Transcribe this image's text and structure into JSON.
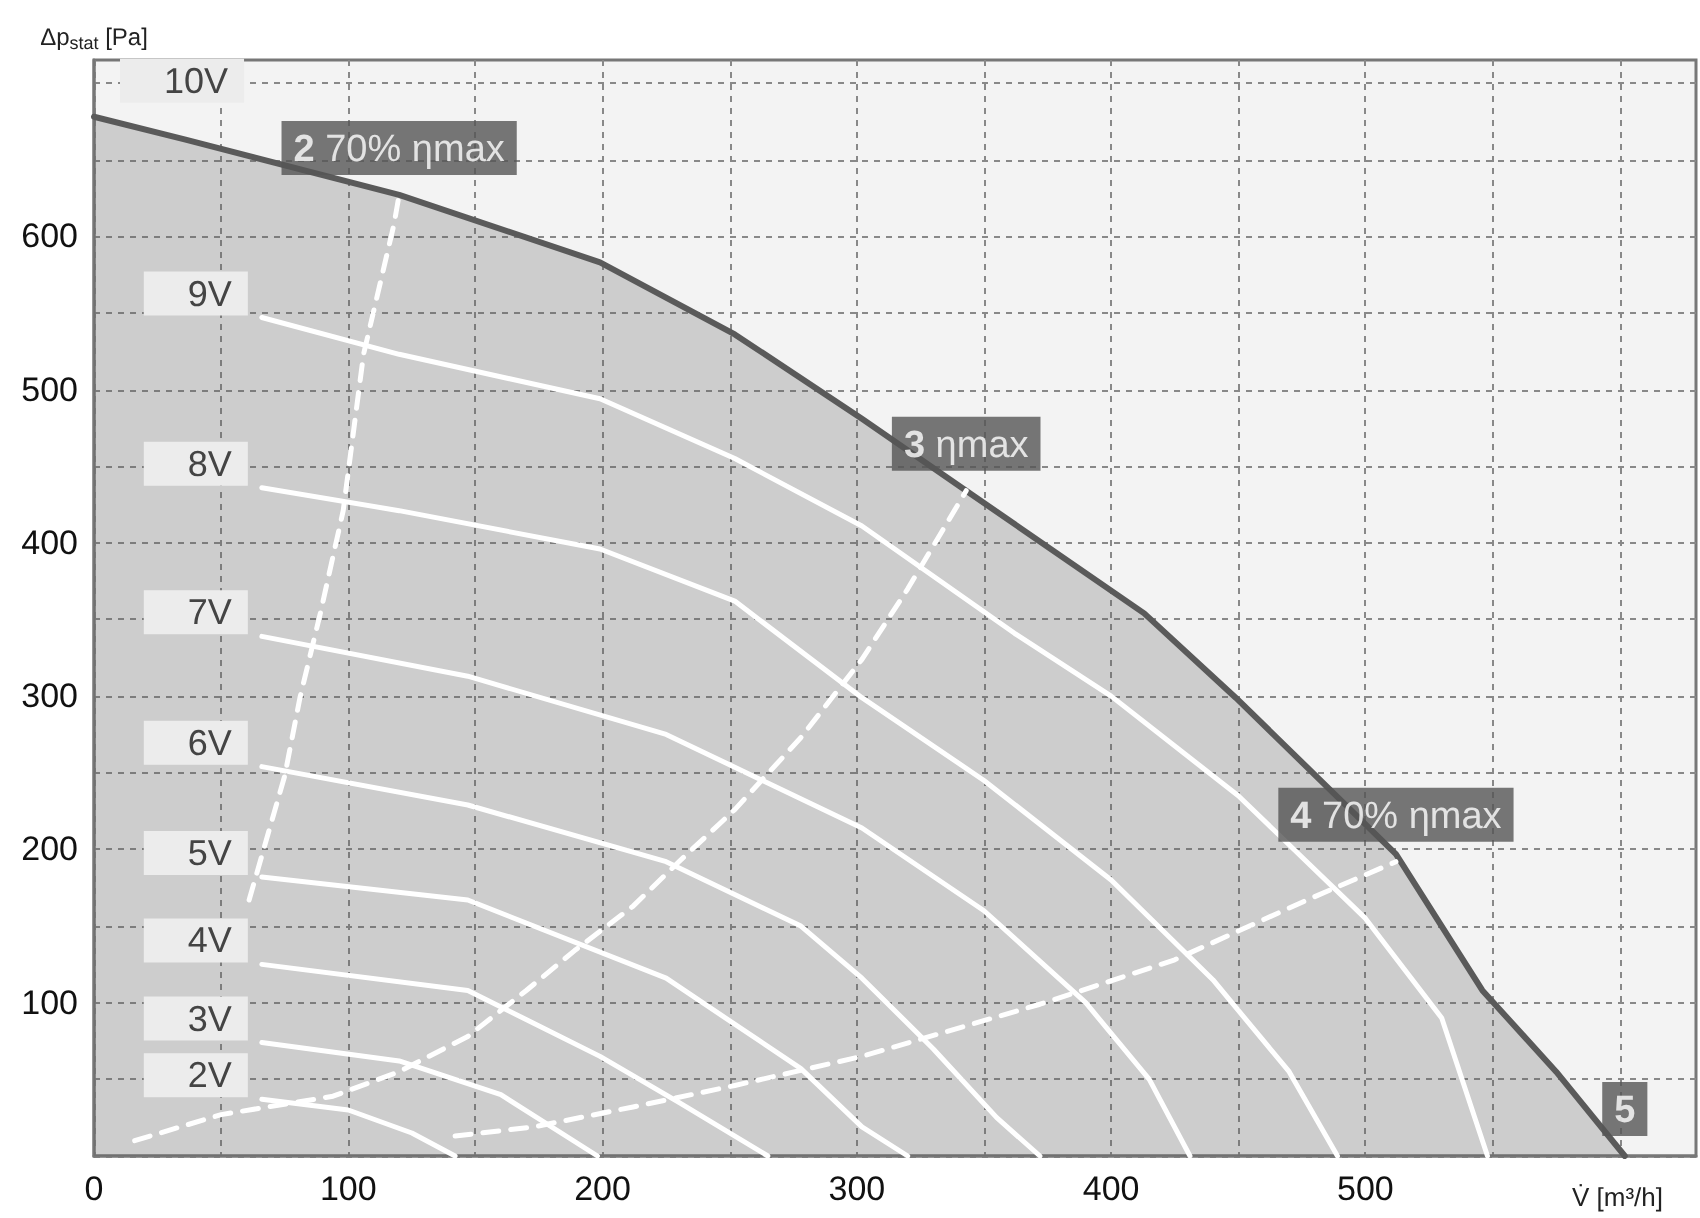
{
  "chart_data": {
    "type": "line",
    "xlabel": "V̇ [m³/h]",
    "ylabel": "Δp$_{stat}$ [Pa]",
    "xlim": [
      0,
      630
    ],
    "ylim": [
      0,
      715
    ],
    "xticks": [
      0,
      {
        "value": 50,
        "label": null
      },
      100,
      {
        "value": 150,
        "label": null
      },
      200,
      {
        "value": 250,
        "label": null
      },
      300,
      {
        "value": 350,
        "label": null
      },
      400,
      {
        "value": 450,
        "label": null
      },
      500,
      {
        "value": 550,
        "label": null
      },
      {
        "value": 600,
        "label": null
      }
    ],
    "yticks": [
      {
        "value": 0,
        "label": null
      },
      {
        "value": 50,
        "label": null
      },
      100,
      {
        "value": 150,
        "label": null
      },
      200,
      {
        "value": 250,
        "label": null
      },
      300,
      {
        "value": 350,
        "label": null
      },
      400,
      {
        "value": 450,
        "label": null
      },
      500,
      {
        "value": 550,
        "label": null
      },
      600,
      {
        "value": 650,
        "label": null
      },
      {
        "value": 700,
        "label": null
      }
    ],
    "grid": true,
    "marker": "none",
    "series": [
      {
        "name": "10V",
        "type": "area",
        "color": "#5a5a5a",
        "line_style": "solid",
        "x": [
          0,
          36,
          120,
          199,
          252,
          302,
          343,
          413,
          449,
          512,
          546,
          575,
          602
        ],
        "values": [
          678,
          663,
          627,
          583,
          536,
          481,
          434,
          354,
          299,
          197,
          108,
          55,
          0
        ]
      },
      {
        "name": "9V",
        "color": "#ffffff",
        "line_style": "solid",
        "x": [
          66,
          120,
          199,
          252,
          302,
          362,
          400,
          450,
          500,
          530,
          548
        ],
        "values": [
          547,
          523,
          494,
          455,
          411,
          341,
          300,
          235,
          155,
          90,
          0
        ]
      },
      {
        "name": "8V",
        "color": "#ffffff",
        "line_style": "solid",
        "x": [
          66,
          120,
          199,
          252,
          302,
          350,
          400,
          440,
          470,
          489
        ],
        "values": [
          436,
          421,
          396,
          362,
          299,
          245,
          180,
          115,
          55,
          0
        ]
      },
      {
        "name": "7V",
        "color": "#ffffff",
        "line_style": "solid",
        "x": [
          66,
          147,
          225,
          302,
          350,
          390,
          415,
          431
        ],
        "values": [
          339,
          313,
          275,
          214,
          160,
          100,
          50,
          0
        ]
      },
      {
        "name": "6V",
        "color": "#ffffff",
        "line_style": "solid",
        "x": [
          66,
          147,
          225,
          278,
          302,
          330,
          355,
          372
        ],
        "values": [
          254,
          229,
          192,
          150,
          116,
          70,
          25,
          0
        ]
      },
      {
        "name": "5V",
        "color": "#ffffff",
        "line_style": "solid",
        "x": [
          66,
          147,
          225,
          278,
          302,
          320
        ],
        "values": [
          182,
          167,
          116,
          57,
          19,
          0
        ]
      },
      {
        "name": "4V",
        "color": "#ffffff",
        "line_style": "solid",
        "x": [
          66,
          147,
          199,
          230,
          265
        ],
        "values": [
          125,
          108,
          65,
          35,
          0
        ]
      },
      {
        "name": "3V",
        "color": "#ffffff",
        "line_style": "solid",
        "x": [
          66,
          120,
          160,
          198
        ],
        "values": [
          74,
          62,
          40,
          0
        ]
      },
      {
        "name": "2V",
        "color": "#ffffff",
        "line_style": "solid",
        "x": [
          66,
          100,
          125,
          142
        ],
        "values": [
          37,
          30,
          15,
          0
        ]
      },
      {
        "color": "#ffffff",
        "line_style": "dashed",
        "x": [
          61,
          75,
          81,
          89,
          98,
          106,
          118,
          120
        ],
        "values": [
          167,
          248,
          299,
          354,
          421,
          523,
          608,
          627
        ]
      },
      {
        "color": "#ffffff",
        "line_style": "dashed",
        "x": [
          16,
          50,
          94,
          120,
          147,
          170,
          189,
          212,
          230,
          252,
          278,
          302,
          320,
          343
        ],
        "values": [
          10,
          27,
          39,
          55,
          78,
          108,
          134,
          163,
          192,
          226,
          273,
          324,
          370,
          434
        ]
      },
      {
        "color": "#ffffff",
        "line_style": "dashed",
        "x": [
          142,
          173,
          212,
          252,
          302,
          372,
          425,
          477,
          512
        ],
        "values": [
          13,
          19,
          32,
          46,
          65,
          99,
          128,
          167,
          192
        ]
      }
    ],
    "annotations": [
      {
        "text": "2 70% ηmax",
        "x": 120,
        "y": 627
      },
      {
        "text": "3 ηmax",
        "x": 343,
        "y": 434
      },
      {
        "text": "4 70% ηmax",
        "x": 512,
        "y": 192
      },
      {
        "text": "5",
        "x": 602,
        "y": 0
      }
    ]
  }
}
